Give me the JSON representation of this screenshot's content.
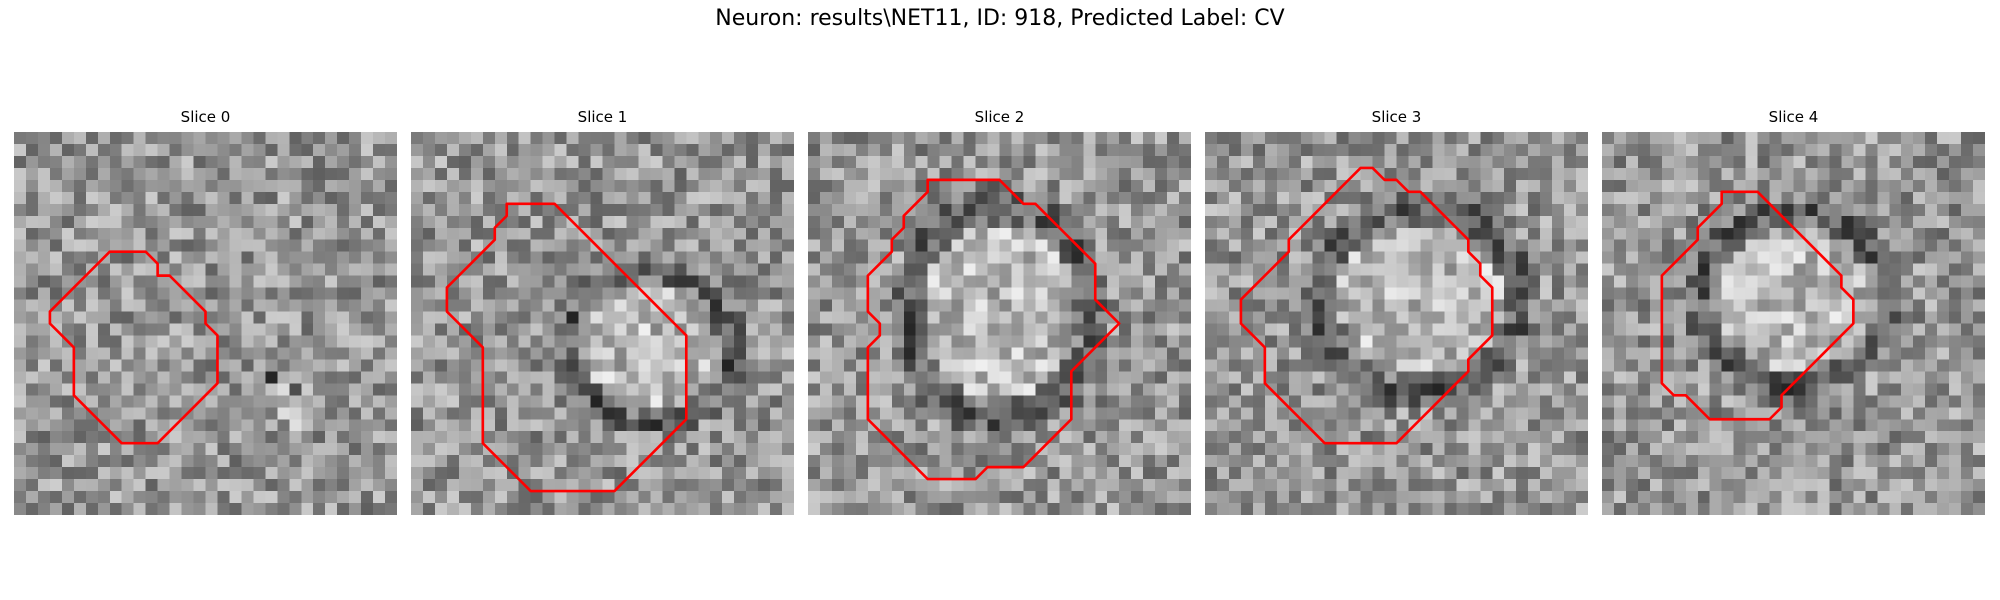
{
  "figure": {
    "title": "Neuron: results\\NET11, ID: 918, Predicted Label: CV"
  },
  "panels": [
    {
      "title": "Slice 0",
      "seed": 11,
      "dark": [
        [
          5.5,
          5.5,
          1.2,
          3.0,
          -0.7
        ]
      ],
      "contour": [
        [
          9,
          10
        ],
        [
          11,
          10
        ],
        [
          12,
          11
        ],
        [
          12,
          12
        ],
        [
          13,
          12
        ],
        [
          14,
          13
        ],
        [
          15,
          14
        ],
        [
          16,
          15
        ],
        [
          16,
          16
        ],
        [
          17,
          17
        ],
        [
          17,
          18
        ],
        [
          17,
          19
        ],
        [
          17,
          20
        ],
        [
          17,
          21
        ],
        [
          16,
          22
        ],
        [
          15,
          23
        ],
        [
          14,
          24
        ],
        [
          13,
          25
        ],
        [
          12,
          26
        ],
        [
          11,
          26
        ],
        [
          10,
          26
        ],
        [
          9,
          26
        ],
        [
          8,
          25
        ],
        [
          7,
          24
        ],
        [
          6,
          23
        ],
        [
          5,
          22
        ],
        [
          5,
          21
        ],
        [
          5,
          20
        ],
        [
          5,
          19
        ],
        [
          5,
          18
        ],
        [
          4,
          17
        ],
        [
          3,
          16
        ],
        [
          3,
          15
        ],
        [
          4,
          14
        ],
        [
          5,
          13
        ],
        [
          6,
          12
        ],
        [
          7,
          11
        ],
        [
          8,
          10
        ]
      ]
    },
    {
      "title": "Slice 1",
      "seed": 23,
      "dark": [
        [
          8.5,
          10.5,
          6.5,
          6.0,
          0.0
        ]
      ],
      "contour": [
        [
          8,
          6
        ],
        [
          9,
          6
        ],
        [
          10,
          6
        ],
        [
          11,
          6
        ],
        [
          12,
          6
        ],
        [
          13,
          7
        ],
        [
          14,
          8
        ],
        [
          15,
          9
        ],
        [
          16,
          10
        ],
        [
          17,
          11
        ],
        [
          18,
          12
        ],
        [
          19,
          13
        ],
        [
          20,
          14
        ],
        [
          21,
          15
        ],
        [
          22,
          16
        ],
        [
          23,
          17
        ],
        [
          23,
          18
        ],
        [
          23,
          19
        ],
        [
          23,
          20
        ],
        [
          23,
          21
        ],
        [
          23,
          22
        ],
        [
          23,
          23
        ],
        [
          23,
          24
        ],
        [
          22,
          25
        ],
        [
          21,
          26
        ],
        [
          20,
          27
        ],
        [
          19,
          28
        ],
        [
          18,
          29
        ],
        [
          17,
          30
        ],
        [
          16,
          30
        ],
        [
          15,
          30
        ],
        [
          14,
          30
        ],
        [
          13,
          30
        ],
        [
          12,
          30
        ],
        [
          11,
          30
        ],
        [
          10,
          30
        ],
        [
          9,
          29
        ],
        [
          8,
          28
        ],
        [
          7,
          27
        ],
        [
          6,
          26
        ],
        [
          6,
          25
        ],
        [
          6,
          24
        ],
        [
          6,
          23
        ],
        [
          6,
          22
        ],
        [
          6,
          21
        ],
        [
          6,
          20
        ],
        [
          6,
          19
        ],
        [
          6,
          18
        ],
        [
          5,
          17
        ],
        [
          4,
          16
        ],
        [
          3,
          15
        ],
        [
          3,
          14
        ],
        [
          3,
          13
        ],
        [
          4,
          12
        ],
        [
          5,
          11
        ],
        [
          6,
          10
        ],
        [
          7,
          9
        ],
        [
          7,
          8
        ],
        [
          8,
          7
        ]
      ]
    },
    {
      "title": "Slice 2",
      "seed": 37,
      "dark": [
        [
          12.5,
          13.5,
          7.5,
          8.5,
          0.0
        ]
      ],
      "contour": [
        [
          10,
          4
        ],
        [
          11,
          4
        ],
        [
          12,
          4
        ],
        [
          13,
          4
        ],
        [
          14,
          4
        ],
        [
          15,
          4
        ],
        [
          16,
          4
        ],
        [
          17,
          5
        ],
        [
          18,
          6
        ],
        [
          19,
          6
        ],
        [
          20,
          7
        ],
        [
          21,
          8
        ],
        [
          22,
          9
        ],
        [
          23,
          10
        ],
        [
          24,
          11
        ],
        [
          24,
          12
        ],
        [
          24,
          13
        ],
        [
          24,
          14
        ],
        [
          25,
          15
        ],
        [
          26,
          16
        ],
        [
          25,
          17
        ],
        [
          24,
          18
        ],
        [
          23,
          19
        ],
        [
          22,
          20
        ],
        [
          22,
          21
        ],
        [
          22,
          22
        ],
        [
          22,
          23
        ],
        [
          22,
          24
        ],
        [
          21,
          25
        ],
        [
          20,
          26
        ],
        [
          19,
          27
        ],
        [
          18,
          28
        ],
        [
          17,
          28
        ],
        [
          16,
          28
        ],
        [
          15,
          28
        ],
        [
          14,
          29
        ],
        [
          13,
          29
        ],
        [
          12,
          29
        ],
        [
          11,
          29
        ],
        [
          10,
          29
        ],
        [
          9,
          28
        ],
        [
          8,
          27
        ],
        [
          7,
          26
        ],
        [
          6,
          25
        ],
        [
          5,
          24
        ],
        [
          5,
          23
        ],
        [
          5,
          22
        ],
        [
          5,
          21
        ],
        [
          5,
          20
        ],
        [
          5,
          19
        ],
        [
          5,
          18
        ],
        [
          6,
          17
        ],
        [
          6,
          16
        ],
        [
          5,
          15
        ],
        [
          5,
          14
        ],
        [
          5,
          13
        ],
        [
          5,
          12
        ],
        [
          6,
          11
        ],
        [
          7,
          10
        ],
        [
          7,
          9
        ],
        [
          8,
          8
        ],
        [
          8,
          7
        ],
        [
          9,
          6
        ],
        [
          10,
          5
        ]
      ]
    },
    {
      "title": "Slice 3",
      "seed": 53,
      "dark": [
        [
          10.5,
          14.5,
          8.0,
          7.5,
          0.0
        ]
      ],
      "contour": [
        [
          13,
          3
        ],
        [
          14,
          3
        ],
        [
          15,
          4
        ],
        [
          16,
          4
        ],
        [
          17,
          5
        ],
        [
          18,
          5
        ],
        [
          19,
          6
        ],
        [
          20,
          7
        ],
        [
          21,
          8
        ],
        [
          22,
          9
        ],
        [
          22,
          10
        ],
        [
          23,
          11
        ],
        [
          23,
          12
        ],
        [
          24,
          13
        ],
        [
          24,
          14
        ],
        [
          24,
          15
        ],
        [
          24,
          16
        ],
        [
          24,
          17
        ],
        [
          23,
          18
        ],
        [
          22,
          19
        ],
        [
          22,
          20
        ],
        [
          21,
          21
        ],
        [
          20,
          22
        ],
        [
          19,
          23
        ],
        [
          18,
          24
        ],
        [
          17,
          25
        ],
        [
          16,
          26
        ],
        [
          15,
          26
        ],
        [
          14,
          26
        ],
        [
          13,
          26
        ],
        [
          12,
          26
        ],
        [
          11,
          26
        ],
        [
          10,
          26
        ],
        [
          9,
          25
        ],
        [
          8,
          24
        ],
        [
          7,
          23
        ],
        [
          6,
          22
        ],
        [
          5,
          21
        ],
        [
          5,
          20
        ],
        [
          5,
          19
        ],
        [
          5,
          18
        ],
        [
          4,
          17
        ],
        [
          3,
          16
        ],
        [
          3,
          15
        ],
        [
          3,
          14
        ],
        [
          4,
          13
        ],
        [
          5,
          12
        ],
        [
          6,
          11
        ],
        [
          7,
          10
        ],
        [
          7,
          9
        ],
        [
          8,
          8
        ],
        [
          9,
          7
        ],
        [
          10,
          6
        ],
        [
          11,
          5
        ],
        [
          12,
          4
        ]
      ]
    },
    {
      "title": "Slice 4",
      "seed": 71,
      "dark": [
        [
          12.5,
          14.5,
          7.5,
          7.0,
          0.0
        ]
      ],
      "contour": [
        [
          10,
          5
        ],
        [
          11,
          5
        ],
        [
          12,
          5
        ],
        [
          13,
          5
        ],
        [
          14,
          6
        ],
        [
          15,
          7
        ],
        [
          16,
          8
        ],
        [
          17,
          9
        ],
        [
          18,
          10
        ],
        [
          19,
          11
        ],
        [
          20,
          12
        ],
        [
          20,
          13
        ],
        [
          21,
          14
        ],
        [
          21,
          15
        ],
        [
          21,
          16
        ],
        [
          20,
          17
        ],
        [
          19,
          18
        ],
        [
          18,
          19
        ],
        [
          17,
          20
        ],
        [
          16,
          21
        ],
        [
          15,
          22
        ],
        [
          15,
          23
        ],
        [
          14,
          24
        ],
        [
          13,
          24
        ],
        [
          12,
          24
        ],
        [
          11,
          24
        ],
        [
          10,
          24
        ],
        [
          9,
          24
        ],
        [
          8,
          23
        ],
        [
          7,
          22
        ],
        [
          6,
          22
        ],
        [
          5,
          21
        ],
        [
          5,
          20
        ],
        [
          5,
          19
        ],
        [
          5,
          18
        ],
        [
          5,
          17
        ],
        [
          5,
          16
        ],
        [
          5,
          15
        ],
        [
          5,
          14
        ],
        [
          5,
          13
        ],
        [
          5,
          12
        ],
        [
          6,
          11
        ],
        [
          7,
          10
        ],
        [
          8,
          9
        ],
        [
          8,
          8
        ],
        [
          9,
          7
        ],
        [
          10,
          6
        ]
      ]
    }
  ]
}
